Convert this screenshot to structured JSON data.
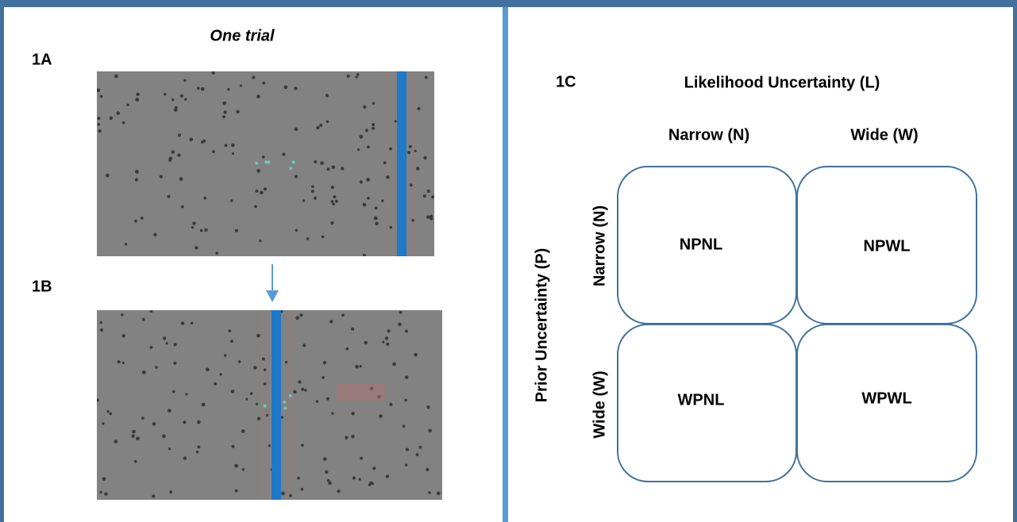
{
  "left": {
    "title": "One trial",
    "panel_a": "1A",
    "panel_b": "1B"
  },
  "right": {
    "panel": "1C",
    "column_axis": "Likelihood Uncertainty (L)",
    "columns": [
      "Narrow (N)",
      "Wide (W)"
    ],
    "row_axis": "Prior Uncertainty (P)",
    "rows": [
      "Narrow (N)",
      "Wide (W)"
    ],
    "cells": [
      [
        "NPNL",
        "NPWL"
      ],
      [
        "WPNL",
        "WPWL"
      ]
    ]
  }
}
